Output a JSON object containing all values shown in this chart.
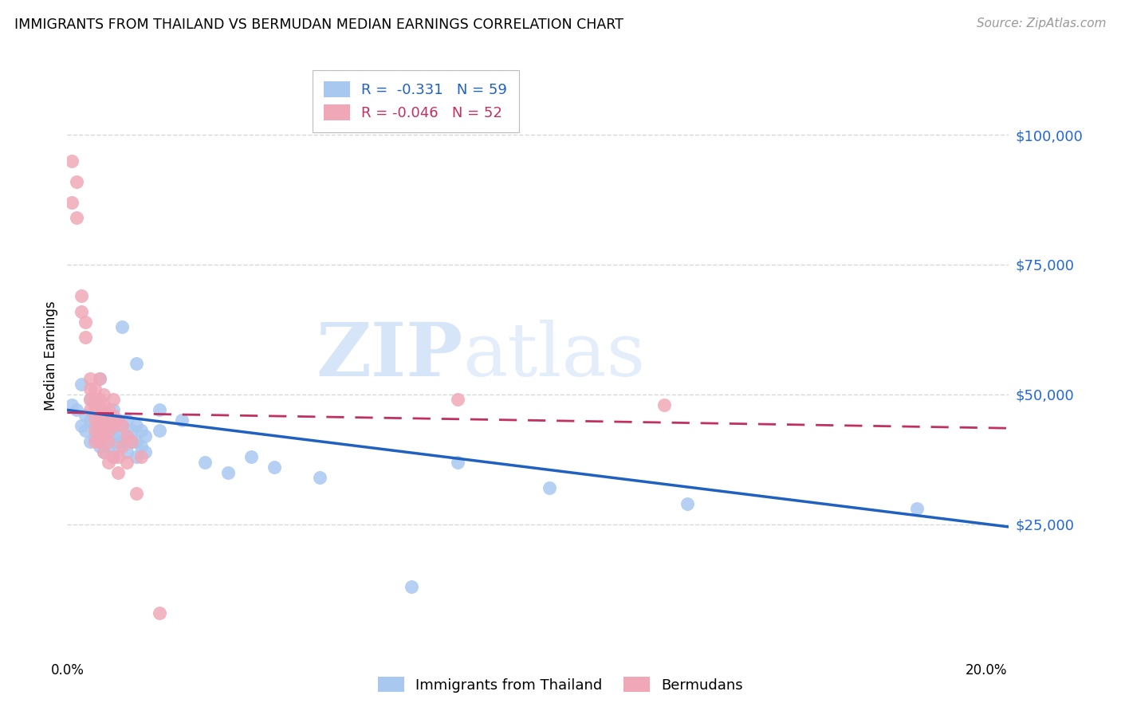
{
  "title": "IMMIGRANTS FROM THAILAND VS BERMUDAN MEDIAN EARNINGS CORRELATION CHART",
  "source": "Source: ZipAtlas.com",
  "ylabel": "Median Earnings",
  "x_min": 0.0,
  "x_max": 0.205,
  "y_min": 0,
  "y_max": 115000,
  "yticks": [
    25000,
    50000,
    75000,
    100000
  ],
  "ytick_labels": [
    "$25,000",
    "$50,000",
    "$75,000",
    "$100,000"
  ],
  "xticks": [
    0.0,
    0.05,
    0.1,
    0.15,
    0.2
  ],
  "xtick_labels": [
    "0.0%",
    "",
    "",
    "",
    "20.0%"
  ],
  "legend_r_blue": "-0.331",
  "legend_n_blue": "59",
  "legend_r_pink": "-0.046",
  "legend_n_pink": "52",
  "legend_label_blue": "Immigrants from Thailand",
  "legend_label_pink": "Bermudans",
  "blue_color": "#a8c8f0",
  "pink_color": "#f0a8b8",
  "trendline_blue": "#2060c0",
  "trendline_pink": "#c03060",
  "watermark_zip": "ZIP",
  "watermark_atlas": "atlas",
  "blue_scatter": [
    [
      0.001,
      48000
    ],
    [
      0.002,
      47000
    ],
    [
      0.003,
      52000
    ],
    [
      0.003,
      44000
    ],
    [
      0.004,
      46000
    ],
    [
      0.004,
      43000
    ],
    [
      0.005,
      49000
    ],
    [
      0.005,
      45000
    ],
    [
      0.005,
      41000
    ],
    [
      0.006,
      48000
    ],
    [
      0.006,
      44000
    ],
    [
      0.006,
      42000
    ],
    [
      0.007,
      53000
    ],
    [
      0.007,
      47000
    ],
    [
      0.007,
      45000
    ],
    [
      0.007,
      40000
    ],
    [
      0.008,
      46000
    ],
    [
      0.008,
      44000
    ],
    [
      0.008,
      42000
    ],
    [
      0.008,
      39000
    ],
    [
      0.009,
      45000
    ],
    [
      0.009,
      43000
    ],
    [
      0.009,
      40000
    ],
    [
      0.01,
      47000
    ],
    [
      0.01,
      44000
    ],
    [
      0.01,
      42000
    ],
    [
      0.01,
      38000
    ],
    [
      0.011,
      45000
    ],
    [
      0.011,
      42000
    ],
    [
      0.011,
      40000
    ],
    [
      0.012,
      63000
    ],
    [
      0.012,
      44000
    ],
    [
      0.012,
      41000
    ],
    [
      0.013,
      45000
    ],
    [
      0.013,
      42000
    ],
    [
      0.013,
      39000
    ],
    [
      0.014,
      43000
    ],
    [
      0.014,
      41000
    ],
    [
      0.015,
      56000
    ],
    [
      0.015,
      44000
    ],
    [
      0.015,
      41000
    ],
    [
      0.015,
      38000
    ],
    [
      0.016,
      43000
    ],
    [
      0.016,
      40000
    ],
    [
      0.017,
      42000
    ],
    [
      0.017,
      39000
    ],
    [
      0.02,
      47000
    ],
    [
      0.02,
      43000
    ],
    [
      0.025,
      45000
    ],
    [
      0.03,
      37000
    ],
    [
      0.035,
      35000
    ],
    [
      0.04,
      38000
    ],
    [
      0.045,
      36000
    ],
    [
      0.055,
      34000
    ],
    [
      0.075,
      13000
    ],
    [
      0.085,
      37000
    ],
    [
      0.105,
      32000
    ],
    [
      0.135,
      29000
    ],
    [
      0.185,
      28000
    ]
  ],
  "pink_scatter": [
    [
      0.001,
      95000
    ],
    [
      0.001,
      87000
    ],
    [
      0.002,
      91000
    ],
    [
      0.002,
      84000
    ],
    [
      0.003,
      69000
    ],
    [
      0.003,
      66000
    ],
    [
      0.004,
      64000
    ],
    [
      0.004,
      61000
    ],
    [
      0.005,
      53000
    ],
    [
      0.005,
      51000
    ],
    [
      0.005,
      49000
    ],
    [
      0.005,
      47000
    ],
    [
      0.006,
      51000
    ],
    [
      0.006,
      49000
    ],
    [
      0.006,
      47000
    ],
    [
      0.006,
      45000
    ],
    [
      0.006,
      43000
    ],
    [
      0.006,
      41000
    ],
    [
      0.007,
      53000
    ],
    [
      0.007,
      49000
    ],
    [
      0.007,
      47000
    ],
    [
      0.007,
      45000
    ],
    [
      0.007,
      43000
    ],
    [
      0.007,
      41000
    ],
    [
      0.008,
      50000
    ],
    [
      0.008,
      48000
    ],
    [
      0.008,
      46000
    ],
    [
      0.008,
      44000
    ],
    [
      0.008,
      42000
    ],
    [
      0.008,
      39000
    ],
    [
      0.009,
      47000
    ],
    [
      0.009,
      45000
    ],
    [
      0.009,
      43000
    ],
    [
      0.009,
      41000
    ],
    [
      0.009,
      37000
    ],
    [
      0.01,
      49000
    ],
    [
      0.01,
      46000
    ],
    [
      0.01,
      44000
    ],
    [
      0.01,
      38000
    ],
    [
      0.011,
      45000
    ],
    [
      0.011,
      38000
    ],
    [
      0.011,
      35000
    ],
    [
      0.012,
      44000
    ],
    [
      0.012,
      40000
    ],
    [
      0.013,
      42000
    ],
    [
      0.013,
      37000
    ],
    [
      0.014,
      41000
    ],
    [
      0.015,
      31000
    ],
    [
      0.016,
      38000
    ],
    [
      0.02,
      8000
    ],
    [
      0.085,
      49000
    ],
    [
      0.13,
      48000
    ]
  ],
  "blue_trend_x": [
    0.0,
    0.205
  ],
  "blue_trend_y": [
    47000,
    24500
  ],
  "pink_trend_x": [
    0.0,
    0.205
  ],
  "pink_trend_y": [
    46500,
    43500
  ],
  "grid_color": "#d8d8d8",
  "background_color": "#ffffff"
}
